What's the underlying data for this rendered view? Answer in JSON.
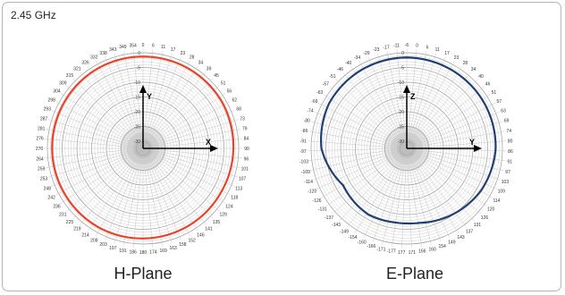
{
  "header": {
    "frequency": "2.45 GHz"
  },
  "chart_data": [
    {
      "type": "polar",
      "title": "H-Plane",
      "axis_label": "Y",
      "x_arrow_label": "X",
      "angle_labels": [
        "0",
        "6",
        "11",
        "17",
        "23",
        "28",
        "34",
        "39",
        "45",
        "51",
        "56",
        "62",
        "68",
        "73",
        "79",
        "84",
        "90",
        "96",
        "101",
        "107",
        "113",
        "118",
        "124",
        "129",
        "135",
        "141",
        "146",
        "152",
        "158",
        "163",
        "169",
        "174",
        "180",
        "186",
        "191",
        "197",
        "203",
        "208",
        "214",
        "219",
        "225",
        "231",
        "236",
        "242",
        "248",
        "253",
        "259",
        "264",
        "270",
        "276",
        "281",
        "287",
        "293",
        "298",
        "304",
        "309",
        "315",
        "321",
        "326",
        "332",
        "338",
        "343",
        "349",
        "354"
      ],
      "radial_ticks": [
        "0",
        "-5",
        "-10",
        "-15",
        "-20",
        "-25",
        "-30"
      ],
      "rlim": [
        -30,
        0
      ],
      "series_color": "#e8432b",
      "angle_deg": [
        0,
        30,
        60,
        90,
        120,
        150,
        180,
        210,
        240,
        270,
        300,
        330
      ],
      "gain_db": [
        -1.3,
        -1.3,
        -1.4,
        -1.8,
        -2.1,
        -2.0,
        -1.9,
        -1.7,
        -1.7,
        -1.6,
        -1.5,
        -1.3
      ]
    },
    {
      "type": "polar",
      "title": "E-Plane",
      "axis_label": "Z",
      "x_arrow_label": "Y",
      "angle_labels": [
        "-6",
        "0",
        "6",
        "11",
        "17",
        "23",
        "28",
        "34",
        "40",
        "46",
        "51",
        "57",
        "63",
        "69",
        "74",
        "80",
        "86",
        "91",
        "97",
        "103",
        "109",
        "114",
        "120",
        "126",
        "131",
        "137",
        "143",
        "149",
        "154",
        "160",
        "166",
        "171",
        "177",
        "-177",
        "-171",
        "-166",
        "-160",
        "-154",
        "-149",
        "-143",
        "-137",
        "-131",
        "-126",
        "-120",
        "-114",
        "-109",
        "-103",
        "-97",
        "-91",
        "-86",
        "-80",
        "-74",
        "-69",
        "-63",
        "-57",
        "-51",
        "-46",
        "-40",
        "-34",
        "-29",
        "-23",
        "-17",
        "-11"
      ],
      "radial_ticks": [
        "0",
        "-5",
        "-10",
        "-15",
        "-20",
        "-25",
        "-30"
      ],
      "rlim": [
        -30,
        0
      ],
      "series_color": "#1f3f73",
      "angle_deg": [
        0,
        30,
        60,
        90,
        120,
        150,
        170,
        180,
        190,
        210,
        240,
        270,
        300,
        330
      ],
      "gain_db": [
        -1.6,
        -1.8,
        -2.0,
        -2.3,
        -3.5,
        -5.5,
        -6.8,
        -7.0,
        -7.0,
        -6.5,
        -7.5,
        -3.5,
        -2.0,
        -1.7
      ]
    }
  ]
}
